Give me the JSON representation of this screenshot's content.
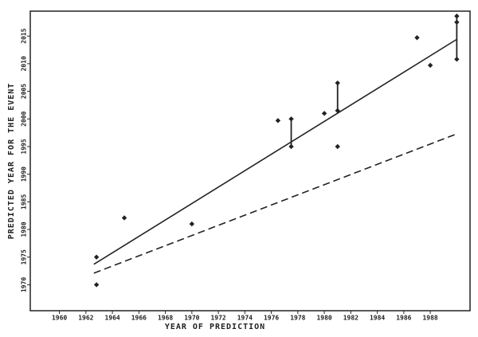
{
  "chart_data": {
    "type": "scatter",
    "x_label": "YEAR OF PREDICTION",
    "y_label": "PREDICTED YEAR FOR THE EVENT",
    "xlim": [
      1957.8,
      1991
    ],
    "ylim": [
      1965.3,
      2019.5
    ],
    "xticks": [
      1960,
      1962,
      1964,
      1966,
      1968,
      1970,
      1972,
      1974,
      1976,
      1978,
      1980,
      1982,
      1984,
      1986,
      1988
    ],
    "yticks": [
      1970,
      1975,
      1980,
      1985,
      1990,
      1995,
      2000,
      2005,
      2010,
      2015
    ],
    "color": "#222222",
    "points": {
      "x": [
        1962.8,
        1962.8,
        1964.9,
        1970,
        1976.5,
        1977.5,
        1977.5,
        1980,
        1981,
        1981,
        1981,
        1987,
        1988,
        1990,
        1990,
        1990
      ],
      "y": [
        1975,
        1970,
        1982.1,
        1981,
        1999.7,
        2000,
        1995,
        2001,
        2006.5,
        2001.5,
        1995,
        2014.7,
        2009.7,
        2018.6,
        2017.5,
        2010.8
      ]
    },
    "ranges": [
      {
        "x": 1977.5,
        "low": 1995,
        "high": 2000
      },
      {
        "x": 1981,
        "low": 2001.5,
        "high": 2006.5
      },
      {
        "x": 1990,
        "low": 2010.8,
        "high": 2018.6
      }
    ],
    "fit_lines": [
      {
        "style": "solid",
        "x": [
          1962.6,
          1990
        ],
        "y": [
          1973.7,
          2014.4
        ]
      },
      {
        "style": "dashed",
        "x": [
          1962.6,
          1990
        ],
        "y": [
          1972.1,
          1997.3
        ]
      }
    ]
  }
}
